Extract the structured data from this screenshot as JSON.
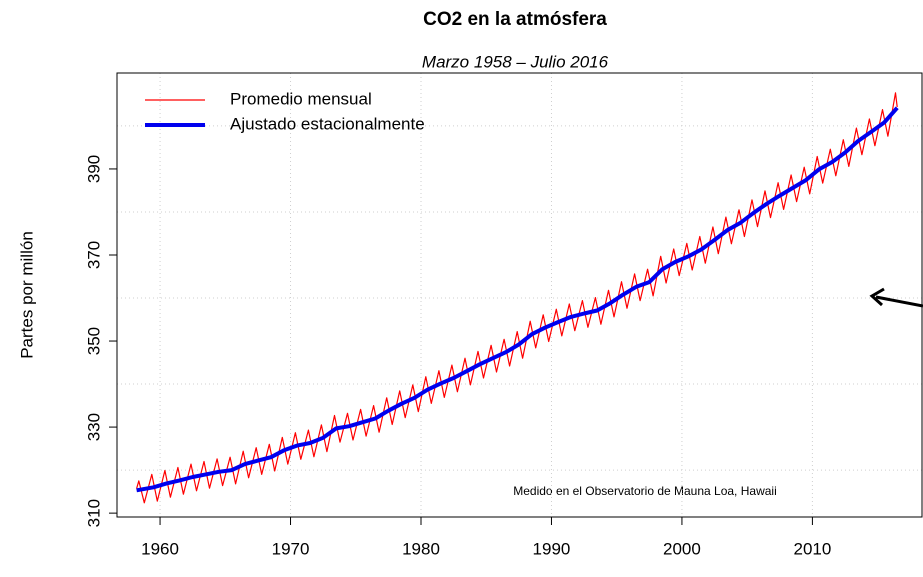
{
  "chart_data": {
    "type": "line",
    "title": "CO2 en la atmósfera",
    "subtitle": "Marzo 1958 – Julio 2016",
    "y_label": "Partes por millón",
    "annotation": "Medido en el Observatorio de Mauna Loa, Hawaii",
    "xlim": [
      1956.7,
      2018.4
    ],
    "xticks": [
      1960,
      1970,
      1980,
      1990,
      2000,
      2010
    ],
    "ylim": [
      309.1,
      412.3
    ],
    "yticks": [
      310,
      330,
      350,
      370,
      390
    ],
    "ygrid": [
      320,
      340,
      360,
      380,
      400
    ],
    "grid": true,
    "legend": "top-left",
    "series": [
      {
        "name": "Promedio mensual",
        "color": "#ff0000",
        "x": [
          1958.2,
          1958.37,
          1958.79,
          1959.37,
          1959.79,
          1960.37,
          1960.79,
          1961.37,
          1961.79,
          1962.37,
          1962.79,
          1963.37,
          1963.79,
          1964.37,
          1964.79,
          1965.37,
          1965.79,
          1966.37,
          1966.79,
          1967.37,
          1967.79,
          1968.37,
          1968.79,
          1969.37,
          1969.79,
          1970.37,
          1970.79,
          1971.37,
          1971.79,
          1972.37,
          1972.79,
          1973.37,
          1973.79,
          1974.37,
          1974.79,
          1975.37,
          1975.79,
          1976.37,
          1976.79,
          1977.37,
          1977.79,
          1978.37,
          1978.79,
          1979.37,
          1979.79,
          1980.37,
          1980.79,
          1981.37,
          1981.79,
          1982.37,
          1982.79,
          1983.37,
          1983.79,
          1984.37,
          1984.79,
          1985.37,
          1985.79,
          1986.37,
          1986.79,
          1987.37,
          1987.79,
          1988.37,
          1988.79,
          1989.37,
          1989.79,
          1990.37,
          1990.79,
          1991.37,
          1991.79,
          1992.37,
          1992.79,
          1993.37,
          1993.79,
          1994.37,
          1994.79,
          1995.37,
          1995.79,
          1996.37,
          1996.79,
          1997.37,
          1997.79,
          1998.37,
          1998.79,
          1999.37,
          1999.79,
          2000.37,
          2000.79,
          2001.37,
          2001.79,
          2002.37,
          2002.79,
          2003.37,
          2003.79,
          2004.37,
          2004.79,
          2005.37,
          2005.79,
          2006.37,
          2006.79,
          2007.37,
          2007.79,
          2008.37,
          2008.79,
          2009.37,
          2009.79,
          2010.37,
          2010.79,
          2011.37,
          2011.79,
          2012.37,
          2012.79,
          2013.37,
          2013.79,
          2014.37,
          2014.79,
          2015.37,
          2015.79,
          2016.37,
          2016.5
        ],
        "values": [
          315.7,
          317.5,
          312.4,
          319.0,
          312.8,
          319.9,
          313.7,
          320.6,
          314.4,
          321.4,
          315.2,
          322.0,
          315.8,
          322.6,
          316.4,
          323.0,
          316.8,
          324.4,
          318.2,
          325.2,
          319.0,
          326.0,
          319.8,
          327.6,
          321.4,
          328.7,
          322.5,
          329.3,
          323.1,
          330.5,
          324.3,
          332.7,
          326.5,
          333.2,
          327.0,
          334.1,
          327.9,
          335.0,
          328.8,
          336.8,
          330.6,
          338.4,
          332.2,
          339.8,
          333.6,
          341.7,
          335.5,
          343.1,
          336.9,
          344.4,
          338.2,
          346.0,
          339.8,
          347.6,
          341.4,
          349.0,
          342.8,
          350.4,
          344.2,
          352.2,
          346.0,
          354.6,
          348.4,
          356.1,
          349.9,
          357.4,
          351.2,
          358.6,
          352.4,
          359.4,
          353.2,
          360.1,
          353.9,
          361.8,
          355.6,
          363.8,
          357.6,
          365.6,
          359.4,
          366.7,
          360.5,
          369.7,
          363.5,
          371.4,
          365.2,
          372.7,
          366.5,
          374.3,
          368.1,
          376.5,
          370.3,
          378.8,
          372.6,
          380.5,
          374.3,
          382.8,
          376.6,
          384.9,
          378.7,
          386.8,
          380.6,
          388.6,
          382.4,
          390.4,
          384.2,
          392.9,
          386.7,
          394.6,
          388.4,
          396.8,
          390.6,
          399.5,
          393.3,
          401.6,
          395.4,
          403.8,
          397.6,
          407.7,
          404.4
        ]
      },
      {
        "name": "Ajustado estacionalmente",
        "color": "#0000ee",
        "x": [
          1958.2,
          1959.5,
          1960.5,
          1961.5,
          1962.5,
          1963.5,
          1964.5,
          1965.5,
          1966.5,
          1967.5,
          1968.5,
          1969.5,
          1970.5,
          1971.5,
          1972.5,
          1973.5,
          1974.5,
          1975.5,
          1976.5,
          1977.5,
          1978.5,
          1979.5,
          1980.5,
          1981.5,
          1982.5,
          1983.5,
          1984.5,
          1985.5,
          1986.5,
          1987.5,
          1988.5,
          1989.5,
          1990.5,
          1991.5,
          1992.5,
          1993.5,
          1994.5,
          1995.5,
          1996.5,
          1997.5,
          1998.5,
          1999.5,
          2000.5,
          2001.5,
          2002.5,
          2003.5,
          2004.5,
          2005.5,
          2006.5,
          2007.5,
          2008.5,
          2009.5,
          2010.5,
          2011.5,
          2012.5,
          2013.5,
          2014.5,
          2015.5,
          2016.5
        ],
        "values": [
          315.3,
          316.0,
          316.9,
          317.6,
          318.4,
          319.0,
          319.6,
          320.0,
          321.4,
          322.2,
          323.0,
          324.6,
          325.7,
          326.3,
          327.5,
          329.7,
          330.2,
          331.1,
          332.0,
          333.8,
          335.4,
          336.8,
          338.7,
          340.1,
          341.4,
          343.0,
          344.6,
          346.0,
          347.4,
          349.2,
          351.6,
          353.1,
          354.4,
          355.6,
          356.4,
          357.1,
          358.8,
          360.8,
          362.6,
          363.7,
          366.7,
          368.4,
          369.7,
          371.3,
          373.5,
          375.8,
          377.5,
          379.8,
          381.9,
          383.8,
          385.6,
          387.4,
          389.9,
          391.6,
          393.8,
          396.5,
          398.6,
          400.8,
          404.2
        ]
      }
    ]
  }
}
